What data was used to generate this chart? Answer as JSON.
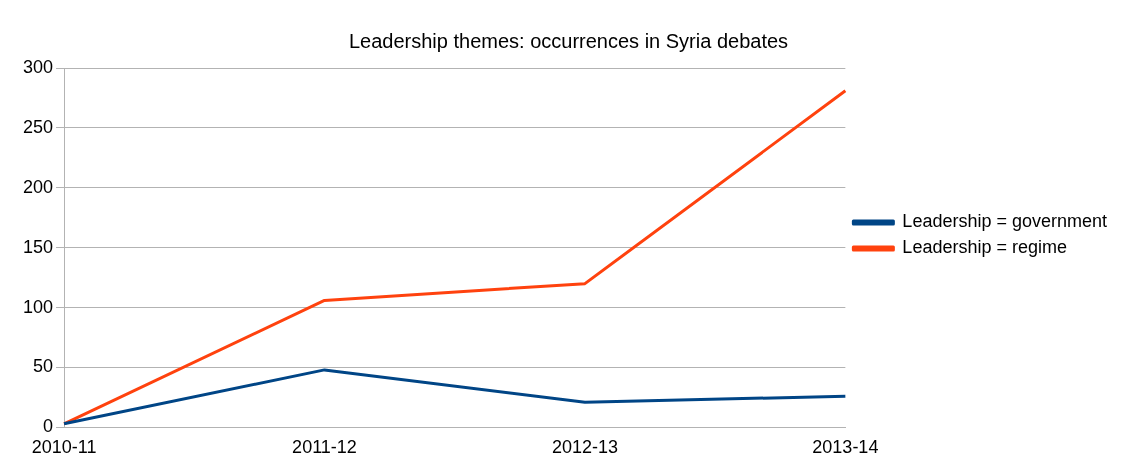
{
  "chart_data": {
    "type": "line",
    "title": "Leadership themes: occurrences in Syria debates",
    "categories": [
      "2010-11",
      "2011-12",
      "2012-13",
      "2013-14"
    ],
    "series": [
      {
        "name": "Leadership = government",
        "color": "#004586",
        "values": [
          3,
          48,
          21,
          26
        ]
      },
      {
        "name": "Leadership = regime",
        "color": "#ff420e",
        "values": [
          3,
          106,
          120,
          281
        ]
      }
    ],
    "ylim": [
      0,
      300
    ],
    "yticks": [
      0,
      50,
      100,
      150,
      200,
      250,
      300
    ],
    "grid": "y",
    "legend": "right",
    "marker": "none",
    "line_style": "solid"
  }
}
